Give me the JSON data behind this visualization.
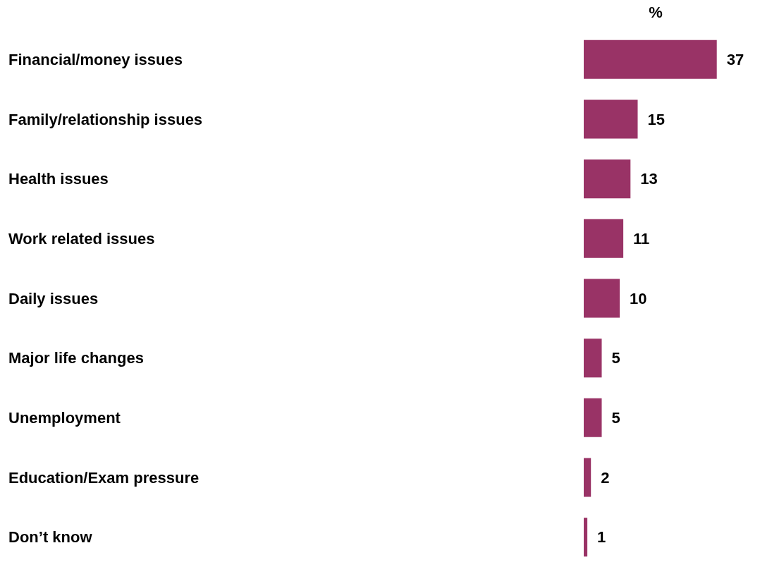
{
  "chart_data": {
    "type": "bar",
    "orientation": "horizontal",
    "xlabel": "%",
    "categories": [
      "Financial/money issues",
      "Family/relationship issues",
      "Health issues",
      "Work related issues",
      "Daily issues",
      "Major life changes",
      "Unemployment",
      "Education/Exam pressure",
      "Don’t know"
    ],
    "values": [
      37,
      15,
      13,
      11,
      10,
      5,
      5,
      2,
      1
    ],
    "color": "#993366",
    "data_labels": true
  }
}
